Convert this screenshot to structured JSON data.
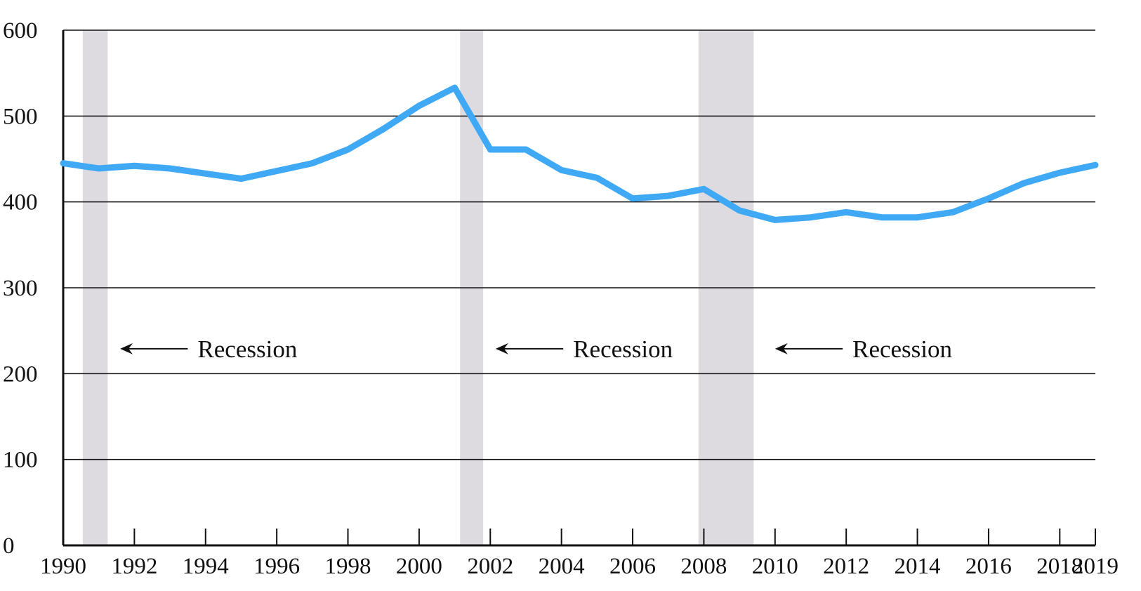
{
  "chart_data": {
    "type": "line",
    "title": "",
    "xlabel": "",
    "ylabel": "",
    "xlim": [
      1990,
      2019
    ],
    "ylim": [
      0,
      600
    ],
    "y_ticks": [
      0,
      100,
      200,
      300,
      400,
      500,
      600
    ],
    "x_ticks": [
      1990,
      1992,
      1994,
      1996,
      1998,
      2000,
      2002,
      2004,
      2006,
      2008,
      2010,
      2012,
      2014,
      2016,
      2018,
      2019
    ],
    "grid": true,
    "series": [
      {
        "x": [
          1990,
          1991,
          1992,
          1993,
          1994,
          1995,
          1996,
          1997,
          1998,
          1999,
          2000,
          2001,
          2002,
          2003,
          2004,
          2005,
          2006,
          2007,
          2008,
          2009,
          2010,
          2011,
          2012,
          2013,
          2014,
          2015,
          2016,
          2017,
          2018,
          2019
        ],
        "values": [
          445,
          439,
          442,
          439,
          433,
          427,
          436,
          445,
          461,
          485,
          512,
          533,
          461,
          461,
          437,
          428,
          404,
          407,
          415,
          390,
          379,
          382,
          388,
          382,
          382,
          388,
          404,
          422,
          434,
          443
        ],
        "color": "#3fa9f5"
      }
    ],
    "recessions": [
      {
        "start": 1990.55,
        "end": 1991.25
      },
      {
        "start": 2001.15,
        "end": 2001.8
      },
      {
        "start": 2007.85,
        "end": 2009.4
      }
    ],
    "recession_color": "#dddbe0",
    "annotations": [
      {
        "text": "Recession",
        "arrow_from": 1991.6,
        "arrow_to": 1993.5,
        "y": 229
      },
      {
        "text": "Recession",
        "arrow_from": 2002.15,
        "arrow_to": 2004.05,
        "y": 229
      },
      {
        "text": "Recession",
        "arrow_from": 2010.0,
        "arrow_to": 2011.9,
        "y": 229
      }
    ]
  }
}
